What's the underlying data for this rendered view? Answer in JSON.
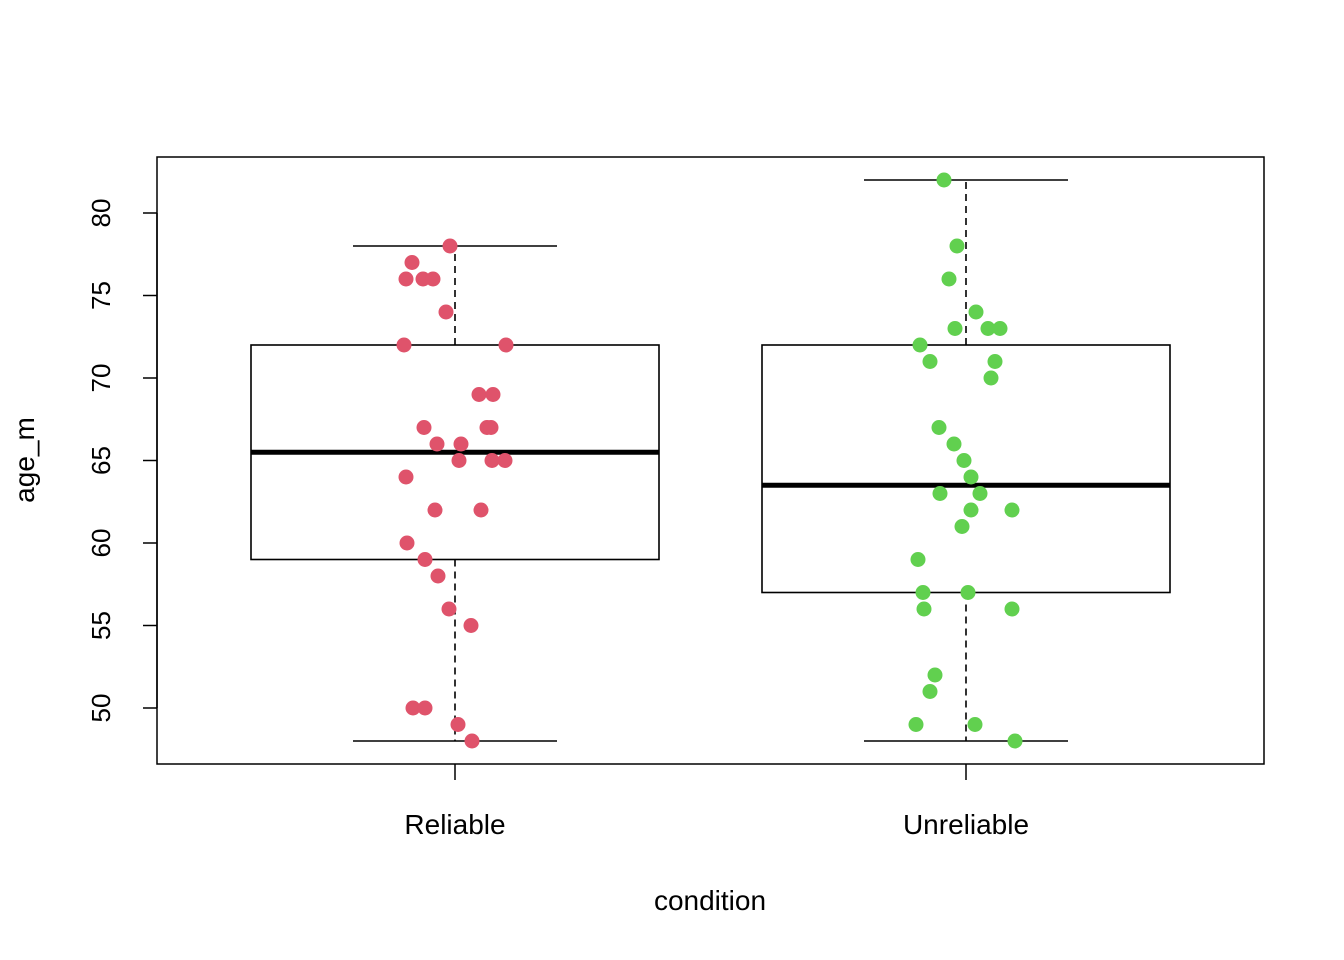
{
  "chart_data": {
    "type": "boxplot",
    "title": "",
    "xlabel": "condition",
    "ylabel": "age_m",
    "ylim": [
      46.6,
      83.4
    ],
    "yticks": [
      50,
      55,
      60,
      65,
      70,
      75,
      80
    ],
    "categories": [
      "Reliable",
      "Unreliable"
    ],
    "grid": false,
    "legend": "none",
    "boxes": [
      {
        "category": "Reliable",
        "color": "#DF536B",
        "whisker_low": 48,
        "q1": 59,
        "median": 65.5,
        "q3": 72,
        "whisker_high": 78
      },
      {
        "category": "Unreliable",
        "color": "#61D04F",
        "whisker_low": 48,
        "q1": 57,
        "median": 63.5,
        "q3": 72,
        "whisker_high": 82
      }
    ],
    "points": [
      {
        "category": "Reliable",
        "values": [
          78,
          77,
          76,
          76,
          76,
          74,
          72,
          72,
          69,
          69,
          67,
          67,
          67,
          66,
          66,
          65,
          65,
          65,
          64,
          62,
          62,
          60,
          59,
          58,
          56,
          55,
          50,
          50,
          49,
          48
        ]
      },
      {
        "category": "Unreliable",
        "values": [
          82,
          78,
          76,
          74,
          73,
          73,
          73,
          72,
          71,
          71,
          70,
          67,
          66,
          65,
          64,
          63,
          63,
          62,
          62,
          61,
          59,
          57,
          57,
          56,
          56,
          52,
          51,
          49,
          49,
          48
        ]
      }
    ]
  }
}
